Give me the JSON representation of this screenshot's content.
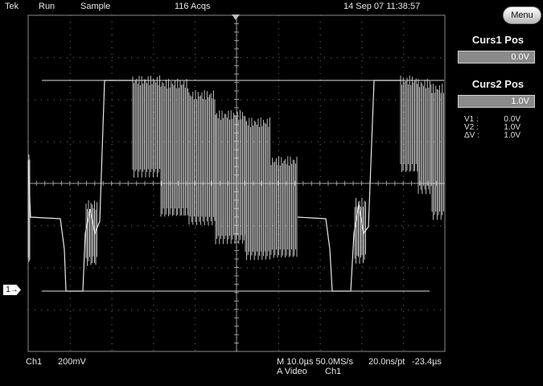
{
  "status": {
    "brand": "Tek",
    "run_state": "Run",
    "acq_mode": "Sample",
    "acqs": "116 Acqs",
    "datetime": "14 Sep 07 11:38:57"
  },
  "side_menu": {
    "menu_label": "Menu",
    "curs1_title": "Curs1 Pos",
    "curs1_value": "0.0V",
    "curs2_title": "Curs2 Pos",
    "curs2_value": "1.0V",
    "readout": [
      {
        "label": "V1 :",
        "value": "0.0V"
      },
      {
        "label": "V2 :",
        "value": "1.0V"
      },
      {
        "label": "ΔV :",
        "value": "1.0V"
      }
    ]
  },
  "bottom": {
    "channel": "Ch1",
    "volts_div": "200mV",
    "timebase": "M 10.0µs 50.0MS/s",
    "resolution": "20.0ns/pt",
    "offset": "-23.4µs",
    "trigger_type": "A  Video",
    "trigger_source": "Ch1"
  },
  "channel_marker": "1",
  "colors": {
    "trace": "#e8e8e8",
    "grid": "#8a8a8a",
    "background": "#000000"
  },
  "icons": {
    "trigger_marker": "triangle-down-icon",
    "channel_marker": "arrow-right-icon"
  }
}
